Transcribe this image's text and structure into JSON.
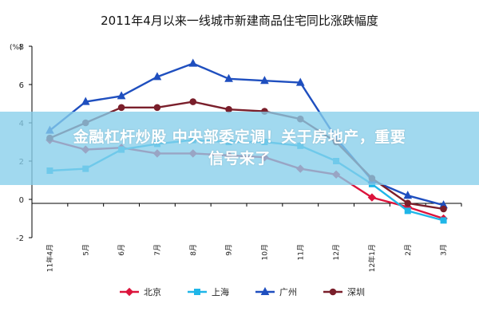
{
  "chart_data": {
    "type": "line",
    "title": "2011年4月以来一线城市新建商品住宅同比涨跌幅度",
    "y_unit": "(%)",
    "ylim": [
      -2,
      8
    ],
    "yticks": [
      -2,
      0,
      2,
      4,
      6,
      8
    ],
    "categories": [
      "11年4月",
      "5月",
      "6月",
      "7月",
      "8月",
      "9月",
      "10月",
      "11月",
      "12月",
      "12年1月",
      "2月",
      "3月"
    ],
    "series": [
      {
        "name": "北京",
        "color": "#dc143c",
        "marker": "diamond",
        "values": [
          3.1,
          2.6,
          2.7,
          2.4,
          2.4,
          2.3,
          2.2,
          1.6,
          1.3,
          0.1,
          -0.4,
          -1.0
        ]
      },
      {
        "name": "上海",
        "color": "#1fb6e8",
        "marker": "square",
        "values": [
          1.5,
          1.6,
          2.6,
          2.9,
          3.1,
          3.0,
          3.0,
          2.8,
          2.0,
          0.8,
          -0.6,
          -1.1
        ]
      },
      {
        "name": "广州",
        "color": "#1f4fbf",
        "marker": "triangle",
        "values": [
          3.6,
          5.1,
          5.4,
          6.4,
          7.1,
          6.3,
          6.2,
          6.1,
          3.2,
          1.0,
          0.2,
          -0.3
        ]
      },
      {
        "name": "深圳",
        "color": "#7a1f2b",
        "marker": "circle",
        "values": [
          3.2,
          4.0,
          4.8,
          4.8,
          5.1,
          4.7,
          4.6,
          4.2,
          3.0,
          1.1,
          -0.2,
          -0.5
        ]
      }
    ],
    "grid": false,
    "legend_position": "bottom"
  },
  "overlay": {
    "line1": "金融杠杆炒股 中央部委定调！关于房地产，重要",
    "line2": "信号来了"
  }
}
